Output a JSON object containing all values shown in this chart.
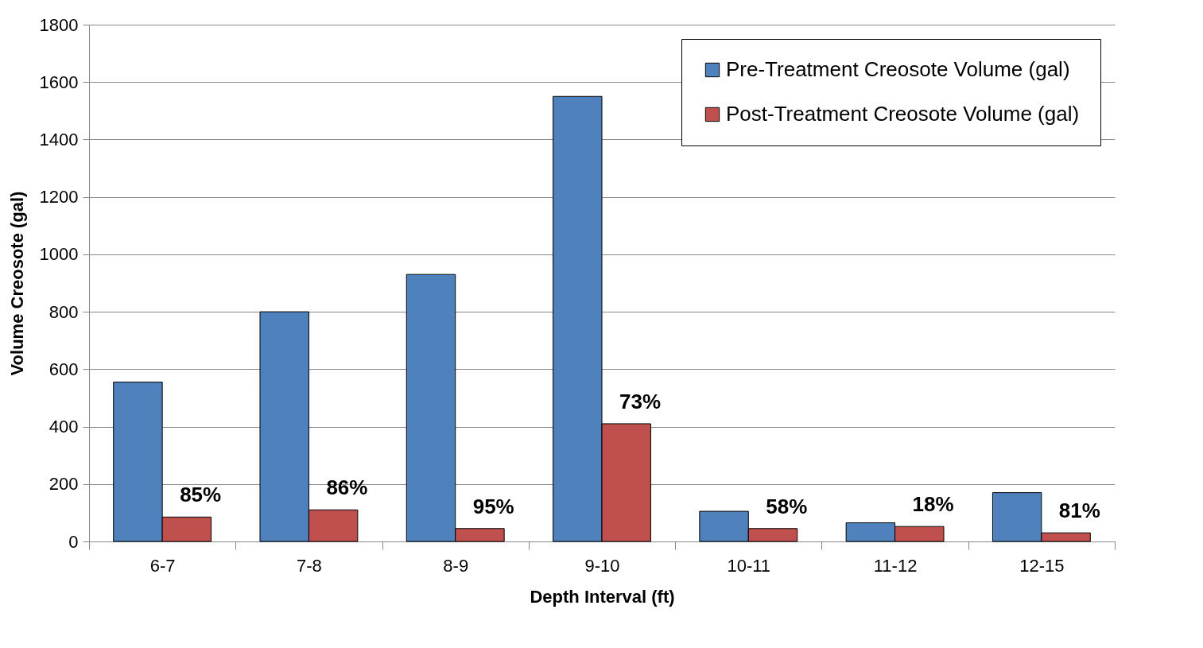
{
  "chart_data": {
    "type": "bar",
    "xlabel": "Depth Interval (ft)",
    "ylabel": "Volume Creosote  (gal)",
    "categories": [
      "6-7",
      "7-8",
      "8-9",
      "9-10",
      "10-11",
      "11-12",
      "12-15"
    ],
    "series": [
      {
        "name": "Pre-Treatment Creosote Volume (gal)",
        "color": "#4f81bd",
        "values": [
          555,
          800,
          930,
          1550,
          105,
          65,
          170
        ]
      },
      {
        "name": "Post-Treatment Creosote Volume (gal)",
        "color": "#c0504d",
        "values": [
          85,
          110,
          45,
          410,
          45,
          52,
          30
        ]
      }
    ],
    "ylim": [
      0,
      1800
    ],
    "yticks": [
      0,
      200,
      400,
      600,
      800,
      1000,
      1200,
      1400,
      1600,
      1800
    ],
    "grid": "y",
    "legend": "top right",
    "annotations": [
      {
        "text": "85%",
        "x": "6-7",
        "y": 85
      },
      {
        "text": "86%",
        "x": "7-8",
        "y": 110
      },
      {
        "text": "95%",
        "x": "8-9",
        "y": 45
      },
      {
        "text": "73%",
        "x": "9-10",
        "y": 410
      },
      {
        "text": "58%",
        "x": "10-11",
        "y": 45
      },
      {
        "text": "18%",
        "x": "11-12",
        "y": 52
      },
      {
        "text": "81%",
        "x": "12-15",
        "y": 30
      }
    ]
  }
}
